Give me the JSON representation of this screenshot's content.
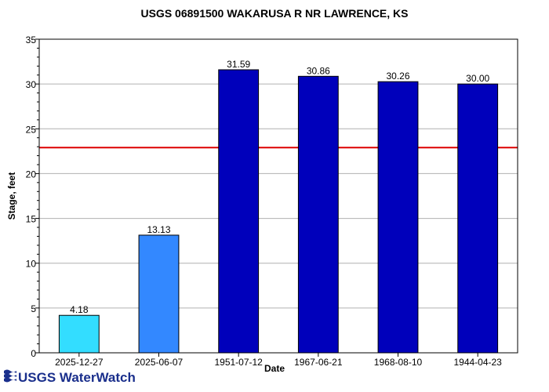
{
  "chart_data": {
    "type": "bar",
    "title": "USGS 06891500 WAKARUSA R NR LAWRENCE, KS",
    "xlabel": "Date",
    "ylabel": "Stage, feet",
    "ylim": [
      0,
      35
    ],
    "yticks": [
      "0",
      "5",
      "10",
      "15",
      "20",
      "25",
      "30",
      "35"
    ],
    "grid": true,
    "categories": [
      "2025-12-27",
      "2025-06-07",
      "1951-07-12",
      "1967-06-21",
      "1968-08-10",
      "1944-04-23"
    ],
    "values": [
      4.18,
      13.13,
      31.59,
      30.86,
      30.26,
      30.0
    ],
    "data_labels": [
      "4.18",
      "13.13",
      "31.59",
      "30.86",
      "30.26",
      "30.00"
    ],
    "bar_colors": [
      "#33ddff",
      "#3388ff",
      "#0000bb",
      "#0000bb",
      "#0000bb",
      "#0000bb"
    ],
    "reference_line": {
      "value": 22.9,
      "color": "#dd0000"
    }
  },
  "footer": {
    "logo_text": "USGS WaterWatch"
  },
  "colors": {
    "logo": "#1a2f8c",
    "grid": "#b0b0b0"
  }
}
